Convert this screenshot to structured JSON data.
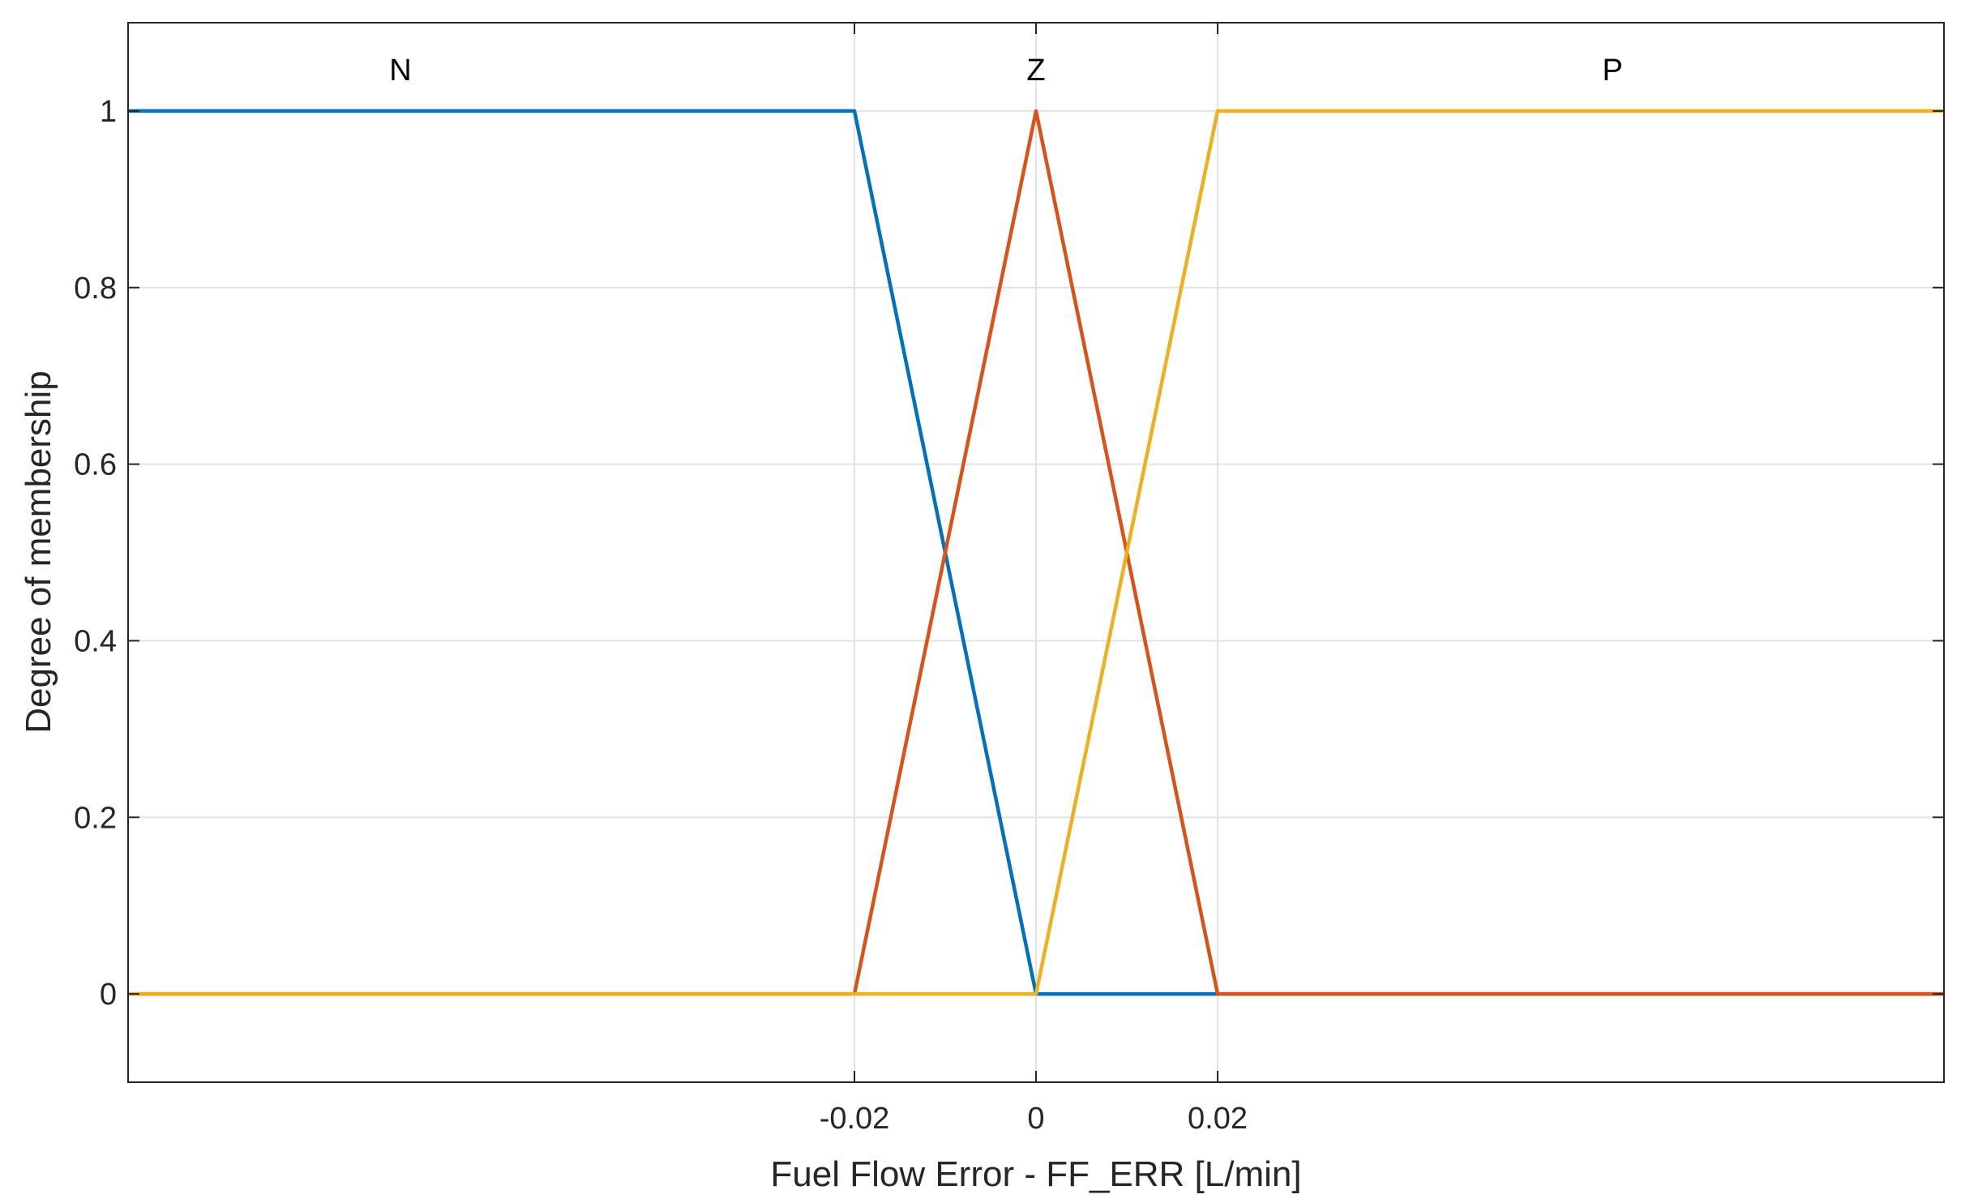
{
  "chart_data": {
    "type": "line",
    "title": "",
    "xlabel": "Fuel Flow Error - FF_ERR [L/min]",
    "ylabel": "Degree of membership",
    "xlim": [
      -0.1,
      0.1
    ],
    "ylim": [
      -0.1,
      1.1
    ],
    "xticks": [
      -0.02,
      0,
      0.02
    ],
    "xtick_labels": [
      "-0.02",
      "0",
      "0.02"
    ],
    "yticks": [
      0,
      0.2,
      0.4,
      0.6,
      0.8,
      1
    ],
    "ytick_labels": [
      "0",
      "0.2",
      "0.4",
      "0.6",
      "0.8",
      "1"
    ],
    "grid": true,
    "series": [
      {
        "name": "N",
        "color": "#0072BD",
        "x": [
          -0.1,
          -0.02,
          0,
          0.1
        ],
        "y": [
          1,
          1,
          0,
          0
        ],
        "label_x": -0.07
      },
      {
        "name": "Z",
        "color": "#D95319",
        "x": [
          -0.1,
          -0.02,
          0,
          0.02,
          0.1
        ],
        "y": [
          0,
          0,
          1,
          0,
          0
        ],
        "label_x": 0
      },
      {
        "name": "P",
        "color": "#EDB120",
        "x": [
          -0.1,
          0,
          0.02,
          0.1
        ],
        "y": [
          0,
          0,
          1,
          1
        ],
        "label_x": 0.0635
      }
    ]
  }
}
